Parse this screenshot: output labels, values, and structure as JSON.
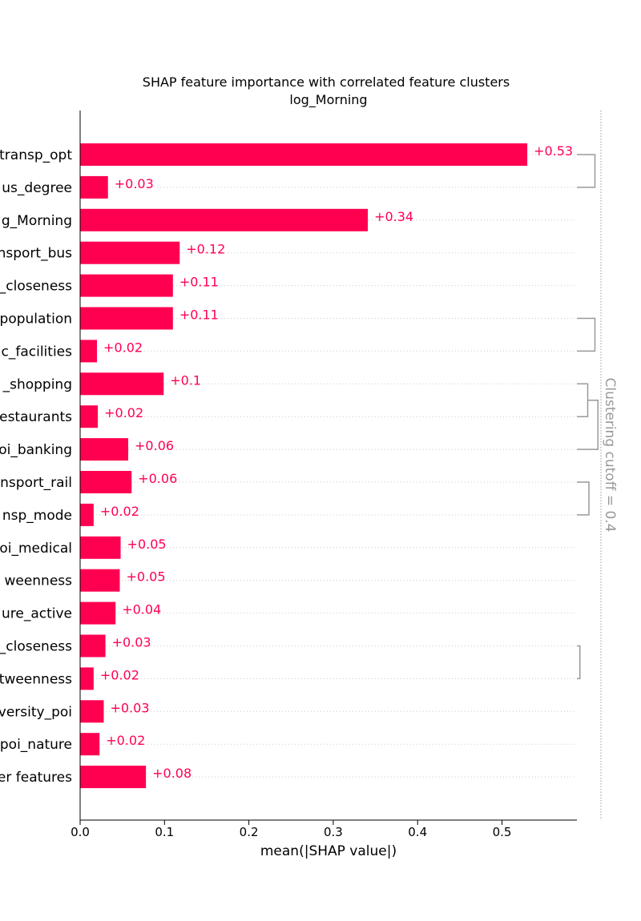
{
  "chart_data": {
    "type": "bar",
    "title": "SHAP feature importance with correlated feature clusters",
    "subtitle": "log_Morning",
    "xlabel": "mean(|SHAP value|)",
    "ylabel": "",
    "xlim": [
      0,
      0.587
    ],
    "xticks": [
      "0.0",
      "0.1",
      "0.2",
      "0.3",
      "0.4",
      "0.5"
    ],
    "bar_color": "#ff0051",
    "categories": [
      "transp_opt",
      "us_degree",
      "g_Morning",
      "nsport_bus",
      "_closeness",
      "population",
      "c_facilities",
      "_shopping",
      "estaurants",
      "oi_banking",
      "nsport_rail",
      "nsp_mode",
      "oi_medical",
      "weenness",
      "ure_active",
      "_closeness",
      "tweenness",
      "versity_poi",
      "poi_nature",
      "er features"
    ],
    "values": [
      0.53,
      0.033,
      0.341,
      0.118,
      0.11,
      0.11,
      0.02,
      0.099,
      0.021,
      0.057,
      0.061,
      0.016,
      0.048,
      0.047,
      0.042,
      0.03,
      0.016,
      0.028,
      0.023,
      0.078
    ],
    "value_labels": [
      "+0.53",
      "+0.03",
      "+0.34",
      "+0.12",
      "+0.11",
      "+0.11",
      "+0.02",
      "+0.1",
      "+0.02",
      "+0.06",
      "+0.06",
      "+0.02",
      "+0.05",
      "+0.05",
      "+0.04",
      "+0.03",
      "+0.02",
      "+0.03",
      "+0.02",
      "+0.08"
    ],
    "cutoff_label": "Clustering cutoff = 0.4",
    "clusters": [
      {
        "rows": [
          0,
          1
        ],
        "distance": 0.3
      },
      {
        "rows": [
          5,
          6
        ],
        "distance": 0.3
      },
      {
        "rows": [
          7,
          8
        ],
        "distance": 0.18
      },
      {
        "rows": [
          7.5,
          9
        ],
        "distance": 0.35
      },
      {
        "rows": [
          10,
          11
        ],
        "distance": 0.2
      },
      {
        "rows": [
          15,
          16
        ],
        "distance": 0.05
      }
    ],
    "grid": true,
    "legend": "none"
  }
}
